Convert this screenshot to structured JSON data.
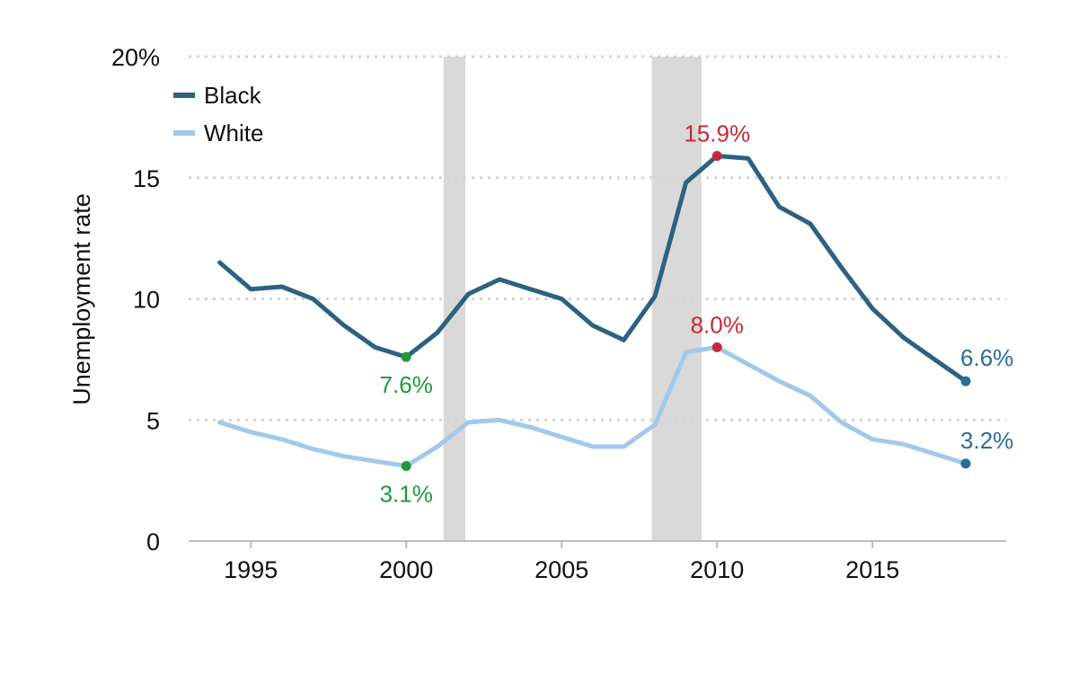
{
  "chart_data": {
    "type": "line",
    "ylabel": "Unemployment rate",
    "xlabel": "",
    "title": "",
    "xlim": [
      1993,
      2019.3
    ],
    "ylim": [
      0,
      20
    ],
    "x_ticks": [
      1995,
      2000,
      2005,
      2010,
      2015
    ],
    "x_tick_labels": [
      "1995",
      "2000",
      "2005",
      "2010",
      "2015"
    ],
    "y_ticks": [
      0,
      5,
      10,
      15,
      20
    ],
    "y_tick_labels": [
      "0",
      "5",
      "10",
      "15",
      "20%"
    ],
    "grid": true,
    "legend_position": "top-left",
    "recession_shading": [
      [
        2001.2,
        2001.9
      ],
      [
        2007.9,
        2009.5
      ]
    ],
    "series": [
      {
        "name": "Black",
        "color": "#2c6281",
        "x": [
          1994,
          1995,
          1996,
          1997,
          1998,
          1999,
          2000,
          2001,
          2002,
          2003,
          2004,
          2005,
          2006,
          2007,
          2008,
          2009,
          2010,
          2011,
          2012,
          2013,
          2014,
          2015,
          2016,
          2017,
          2018
        ],
        "values": [
          11.5,
          10.4,
          10.5,
          10.0,
          8.9,
          8.0,
          7.6,
          8.6,
          10.2,
          10.8,
          10.4,
          10.0,
          8.9,
          8.3,
          10.1,
          14.8,
          15.9,
          15.8,
          13.8,
          13.1,
          11.3,
          9.6,
          8.4,
          7.5,
          6.6
        ]
      },
      {
        "name": "White",
        "color": "#a3c8ea",
        "x": [
          1994,
          1995,
          1996,
          1997,
          1998,
          1999,
          2000,
          2001,
          2002,
          2003,
          2004,
          2005,
          2006,
          2007,
          2008,
          2009,
          2010,
          2011,
          2012,
          2013,
          2014,
          2015,
          2016,
          2017,
          2018
        ],
        "values": [
          4.9,
          4.5,
          4.2,
          3.8,
          3.5,
          3.3,
          3.1,
          3.9,
          4.9,
          5.0,
          4.7,
          4.3,
          3.9,
          3.9,
          4.8,
          7.8,
          8.0,
          7.3,
          6.6,
          6.0,
          4.9,
          4.2,
          4.0,
          3.6,
          3.2
        ]
      }
    ],
    "annotations": [
      {
        "label": "7.6%",
        "x": 2000,
        "y": 7.6,
        "color": "#1e9a3a",
        "placement": "below"
      },
      {
        "label": "3.1%",
        "x": 2000,
        "y": 3.1,
        "color": "#1e9a3a",
        "placement": "below"
      },
      {
        "label": "15.9%",
        "x": 2010,
        "y": 15.9,
        "color": "#c8283c",
        "placement": "above"
      },
      {
        "label": "8.0%",
        "x": 2010,
        "y": 8.0,
        "color": "#c8283c",
        "placement": "above"
      },
      {
        "label": "6.6%",
        "x": 2018,
        "y": 6.6,
        "color": "#2a6d9a",
        "placement": "right"
      },
      {
        "label": "3.2%",
        "x": 2018,
        "y": 3.2,
        "color": "#2a6d9a",
        "placement": "right"
      }
    ]
  }
}
